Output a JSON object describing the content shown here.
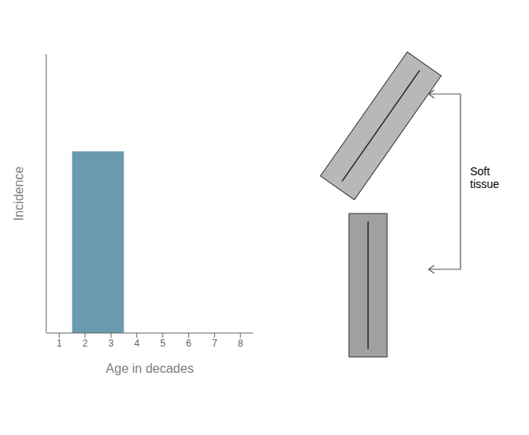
{
  "chart_data": {
    "type": "histogram",
    "bins": [
      1.5,
      3.5
    ],
    "values": [
      0.65
    ],
    "color": "#6a9ab0",
    "xlabel": "Age in decades",
    "ylabel": "Incidence",
    "xlim": [
      0.5,
      8.5
    ],
    "ylim": [
      0,
      1.0
    ],
    "xticks": [
      1,
      2,
      3,
      4,
      5,
      6,
      7,
      8
    ],
    "yticks": [],
    "tick_labels": "x",
    "annotation": "Soft\ntissue"
  }
}
